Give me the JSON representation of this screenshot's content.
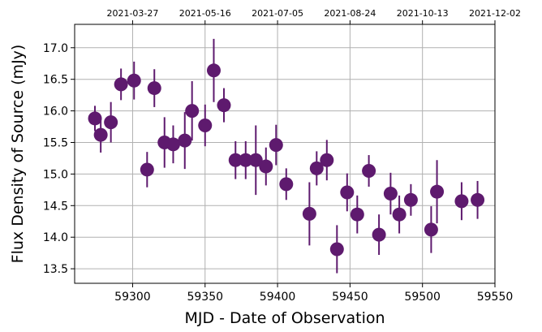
{
  "chart_data": {
    "type": "scatter",
    "xlabel": "MJD - Date of Observation",
    "ylabel": "Flux Density of Source (mJy)",
    "xlim": [
      59260,
      59550
    ],
    "ylim": [
      13.27,
      17.37
    ],
    "grid": true,
    "marker_color": "#5e1a6e",
    "x_ticks": [
      59300,
      59350,
      59400,
      59450,
      59500,
      59550
    ],
    "y_ticks": [
      13.5,
      14.0,
      14.5,
      15.0,
      15.5,
      16.0,
      16.5,
      17.0
    ],
    "x_tick_labels": [
      "59300",
      "59350",
      "59400",
      "59450",
      "59500",
      "59550"
    ],
    "y_tick_labels": [
      "13.5",
      "14.0",
      "14.5",
      "15.0",
      "15.5",
      "16.0",
      "16.5",
      "17.0"
    ],
    "top_axis_ticks": [
      {
        "x": 59300,
        "label": "2021-03-27"
      },
      {
        "x": 59350,
        "label": "2021-05-16"
      },
      {
        "x": 59400,
        "label": "2021-07-05"
      },
      {
        "x": 59450,
        "label": "2021-08-24"
      },
      {
        "x": 59500,
        "label": "2021-10-13"
      },
      {
        "x": 59550,
        "label": "2021-12-02"
      }
    ],
    "points": [
      {
        "x": 59274,
        "y": 15.88,
        "err": 0.2
      },
      {
        "x": 59278,
        "y": 15.62,
        "err": 0.28
      },
      {
        "x": 59285,
        "y": 15.82,
        "err": 0.32
      },
      {
        "x": 59292,
        "y": 16.42,
        "err": 0.25
      },
      {
        "x": 59301,
        "y": 16.48,
        "err": 0.3
      },
      {
        "x": 59310,
        "y": 15.07,
        "err": 0.28
      },
      {
        "x": 59315,
        "y": 16.36,
        "err": 0.3
      },
      {
        "x": 59322,
        "y": 15.5,
        "err": 0.4
      },
      {
        "x": 59328,
        "y": 15.47,
        "err": 0.3
      },
      {
        "x": 59336,
        "y": 15.53,
        "err": 0.45
      },
      {
        "x": 59341,
        "y": 16.0,
        "err": 0.47
      },
      {
        "x": 59350,
        "y": 15.77,
        "err": 0.33
      },
      {
        "x": 59356,
        "y": 16.64,
        "err": 0.5
      },
      {
        "x": 59363,
        "y": 16.09,
        "err": 0.27
      },
      {
        "x": 59371,
        "y": 15.22,
        "err": 0.3
      },
      {
        "x": 59378,
        "y": 15.22,
        "err": 0.3
      },
      {
        "x": 59385,
        "y": 15.22,
        "err": 0.55
      },
      {
        "x": 59392,
        "y": 15.12,
        "err": 0.3
      },
      {
        "x": 59399,
        "y": 15.46,
        "err": 0.32
      },
      {
        "x": 59406,
        "y": 14.84,
        "err": 0.25
      },
      {
        "x": 59422,
        "y": 14.37,
        "err": 0.5
      },
      {
        "x": 59427,
        "y": 15.09,
        "err": 0.27
      },
      {
        "x": 59434,
        "y": 15.22,
        "err": 0.32
      },
      {
        "x": 59441,
        "y": 13.81,
        "err": 0.38
      },
      {
        "x": 59448,
        "y": 14.71,
        "err": 0.3
      },
      {
        "x": 59455,
        "y": 14.36,
        "err": 0.3
      },
      {
        "x": 59463,
        "y": 15.05,
        "err": 0.25
      },
      {
        "x": 59470,
        "y": 14.04,
        "err": 0.32
      },
      {
        "x": 59478,
        "y": 14.69,
        "err": 0.33
      },
      {
        "x": 59484,
        "y": 14.36,
        "err": 0.3
      },
      {
        "x": 59492,
        "y": 14.59,
        "err": 0.25
      },
      {
        "x": 59506,
        "y": 14.12,
        "err": 0.37
      },
      {
        "x": 59510,
        "y": 14.72,
        "err": 0.5
      },
      {
        "x": 59527,
        "y": 14.57,
        "err": 0.3
      },
      {
        "x": 59538,
        "y": 14.59,
        "err": 0.3
      }
    ]
  }
}
